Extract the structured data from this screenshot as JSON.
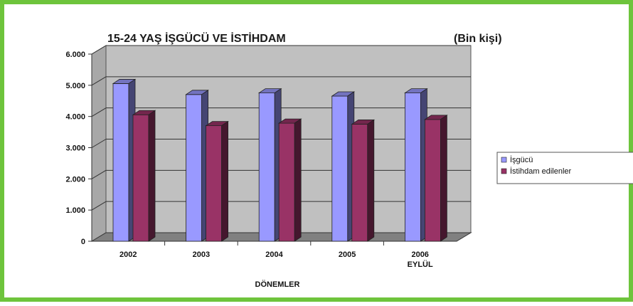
{
  "chart_data": {
    "type": "bar",
    "title": "15-24 YAŞ İŞGÜCÜ VE İSTİHDAM",
    "subtitle": "(Bin kişi)",
    "xlabel": "DÖNEMLER",
    "ylabel": "",
    "ylim": [
      0,
      6000
    ],
    "yticks": [
      "0",
      "1.000",
      "2.000",
      "3.000",
      "4.000",
      "5.000",
      "6.000"
    ],
    "categories": [
      [
        "2002"
      ],
      [
        "2003"
      ],
      [
        "2004"
      ],
      [
        "2005"
      ],
      [
        "2006",
        "EYLÜL"
      ]
    ],
    "series": [
      {
        "name": "İşgücü",
        "values": [
          5100,
          4750,
          4800,
          4700,
          4800
        ],
        "color": "#9999ff"
      },
      {
        "name": "İstihdam edilenler",
        "values": [
          4100,
          3750,
          3830,
          3800,
          3950
        ],
        "color": "#993366"
      }
    ],
    "legend_position": "right",
    "grid": true,
    "style": "3d-clustered-column",
    "wall_color": "#c0c0c0",
    "floor_color": "#808080",
    "frame_color": "#6ec43c"
  }
}
